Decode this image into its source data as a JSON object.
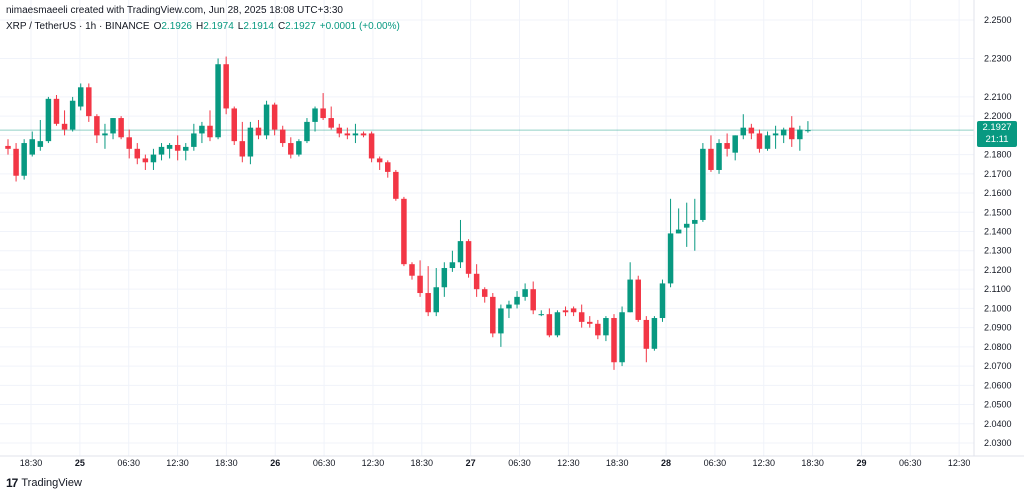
{
  "header": {
    "text": "nimaesmaeeli created with TradingView.com, Jun 28, 2025 18:08 UTC+3:30"
  },
  "legend": {
    "symbol": "XRP / TetherUS · 1h · BINANCE",
    "o_label": "O",
    "o_value": "2.1926",
    "h_label": "H",
    "h_value": "2.1974",
    "l_label": "L",
    "l_value": "2.1914",
    "c_label": "C",
    "c_value": "2.1927",
    "change": "+0.0001 (+0.00%)"
  },
  "price_tag": {
    "price": "2.1927",
    "countdown": "21:11",
    "color": "#089981"
  },
  "footer": {
    "brand": "TradingView",
    "logo_glyph": "17"
  },
  "colors": {
    "up": "#089981",
    "down": "#f23645",
    "grid": "#f0f3fa",
    "last_price_line": "#089981"
  },
  "chart_data": {
    "type": "candlestick",
    "symbol": "XRP / TetherUS",
    "interval": "1h",
    "exchange": "BINANCE",
    "ylim": [
      2.025,
      2.255
    ],
    "y_ticks": [
      "2.2500",
      "2.2300",
      "2.2100",
      "2.2000",
      "2.1900",
      "2.1800",
      "2.1700",
      "2.1600",
      "2.1500",
      "2.1400",
      "2.1300",
      "2.1200",
      "2.1100",
      "2.1000",
      "2.0900",
      "2.0800",
      "2.0700",
      "2.0600",
      "2.0500",
      "2.0400",
      "2.0300"
    ],
    "x_ticks": [
      {
        "label": "18:30",
        "day": false
      },
      {
        "label": "25",
        "day": true
      },
      {
        "label": "06:30",
        "day": false
      },
      {
        "label": "12:30",
        "day": false
      },
      {
        "label": "18:30",
        "day": false
      },
      {
        "label": "26",
        "day": true
      },
      {
        "label": "06:30",
        "day": false
      },
      {
        "label": "12:30",
        "day": false
      },
      {
        "label": "18:30",
        "day": false
      },
      {
        "label": "27",
        "day": true
      },
      {
        "label": "06:30",
        "day": false
      },
      {
        "label": "12:30",
        "day": false
      },
      {
        "label": "18:30",
        "day": false
      },
      {
        "label": "28",
        "day": true
      },
      {
        "label": "06:30",
        "day": false
      },
      {
        "label": "12:30",
        "day": false
      },
      {
        "label": "18:30",
        "day": false
      },
      {
        "label": "29",
        "day": true
      },
      {
        "label": "06:30",
        "day": false
      },
      {
        "label": "12:30",
        "day": false
      }
    ],
    "last_price": 2.1927,
    "candles": [
      [
        2.1845,
        2.188,
        2.18,
        2.183
      ],
      [
        2.183,
        2.186,
        2.166,
        2.169
      ],
      [
        2.169,
        2.188,
        2.167,
        2.186
      ],
      [
        2.18,
        2.192,
        2.179,
        2.188
      ],
      [
        2.184,
        2.198,
        2.182,
        2.187
      ],
      [
        2.187,
        2.21,
        2.186,
        2.209
      ],
      [
        2.209,
        2.211,
        2.195,
        2.196
      ],
      [
        2.196,
        2.203,
        2.19,
        2.193
      ],
      [
        2.193,
        2.21,
        2.192,
        2.208
      ],
      [
        2.205,
        2.217,
        2.203,
        2.215
      ],
      [
        2.215,
        2.217,
        2.197,
        2.2
      ],
      [
        2.2,
        2.201,
        2.186,
        2.19
      ],
      [
        2.19,
        2.196,
        2.183,
        2.191
      ],
      [
        2.191,
        2.199,
        2.188,
        2.199
      ],
      [
        2.199,
        2.2,
        2.188,
        2.189
      ],
      [
        2.189,
        2.193,
        2.178,
        2.183
      ],
      [
        2.183,
        2.186,
        2.175,
        2.178
      ],
      [
        2.178,
        2.18,
        2.172,
        2.176
      ],
      [
        2.176,
        2.183,
        2.172,
        2.18
      ],
      [
        2.18,
        2.186,
        2.177,
        2.184
      ],
      [
        2.183,
        2.186,
        2.178,
        2.185
      ],
      [
        2.185,
        2.19,
        2.177,
        2.182
      ],
      [
        2.182,
        2.186,
        2.177,
        2.184
      ],
      [
        2.184,
        2.196,
        2.182,
        2.191
      ],
      [
        2.191,
        2.197,
        2.186,
        2.195
      ],
      [
        2.195,
        2.203,
        2.187,
        2.189
      ],
      [
        2.189,
        2.23,
        2.188,
        2.227
      ],
      [
        2.227,
        2.231,
        2.201,
        2.204
      ],
      [
        2.204,
        2.205,
        2.185,
        2.187
      ],
      [
        2.187,
        2.197,
        2.176,
        2.179
      ],
      [
        2.179,
        2.197,
        2.175,
        2.194
      ],
      [
        2.194,
        2.198,
        2.188,
        2.19
      ],
      [
        2.19,
        2.208,
        2.188,
        2.206
      ],
      [
        2.206,
        2.207,
        2.19,
        2.193
      ],
      [
        2.193,
        2.195,
        2.184,
        2.186
      ],
      [
        2.186,
        2.189,
        2.178,
        2.18
      ],
      [
        2.18,
        2.188,
        2.179,
        2.187
      ],
      [
        2.187,
        2.199,
        2.186,
        2.197
      ],
      [
        2.197,
        2.205,
        2.192,
        2.204
      ],
      [
        2.204,
        2.212,
        2.198,
        2.199
      ],
      [
        2.199,
        2.205,
        2.193,
        2.194
      ],
      [
        2.194,
        2.196,
        2.189,
        2.191
      ],
      [
        2.191,
        2.194,
        2.188,
        2.19
      ],
      [
        2.19,
        2.196,
        2.186,
        2.191
      ],
      [
        2.191,
        2.192,
        2.189,
        2.19
      ],
      [
        2.191,
        2.192,
        2.176,
        2.178
      ],
      [
        2.178,
        2.179,
        2.172,
        2.176
      ],
      [
        2.176,
        2.177,
        2.168,
        2.171
      ],
      [
        2.171,
        2.172,
        2.156,
        2.157
      ],
      [
        2.157,
        2.158,
        2.122,
        2.123
      ],
      [
        2.123,
        2.124,
        2.115,
        2.117
      ],
      [
        2.117,
        2.125,
        2.106,
        2.108
      ],
      [
        2.108,
        2.122,
        2.096,
        2.098
      ],
      [
        2.098,
        2.121,
        2.096,
        2.111
      ],
      [
        2.111,
        2.124,
        2.106,
        2.121
      ],
      [
        2.121,
        2.13,
        2.119,
        2.124
      ],
      [
        2.124,
        2.146,
        2.121,
        2.135
      ],
      [
        2.135,
        2.136,
        2.116,
        2.118
      ],
      [
        2.118,
        2.123,
        2.106,
        2.11
      ],
      [
        2.11,
        2.111,
        2.103,
        2.106
      ],
      [
        2.106,
        2.108,
        2.085,
        2.087
      ],
      [
        2.087,
        2.102,
        2.08,
        2.1
      ],
      [
        2.1,
        2.104,
        2.095,
        2.102
      ],
      [
        2.102,
        2.109,
        2.1,
        2.106
      ],
      [
        2.106,
        2.113,
        2.104,
        2.11
      ],
      [
        2.11,
        2.114,
        2.097,
        2.099
      ],
      [
        2.097,
        2.099,
        2.096,
        2.097
      ],
      [
        2.097,
        2.1,
        2.085,
        2.086
      ],
      [
        2.086,
        2.099,
        2.085,
        2.098
      ],
      [
        2.099,
        2.101,
        2.096,
        2.098
      ],
      [
        2.1,
        2.101,
        2.096,
        2.098
      ],
      [
        2.098,
        2.102,
        2.09,
        2.093
      ],
      [
        2.093,
        2.096,
        2.09,
        2.092
      ],
      [
        2.092,
        2.094,
        2.084,
        2.086
      ],
      [
        2.086,
        2.096,
        2.083,
        2.095
      ],
      [
        2.095,
        2.097,
        2.068,
        2.072
      ],
      [
        2.072,
        2.101,
        2.07,
        2.098
      ],
      [
        2.098,
        2.124,
        2.098,
        2.115
      ],
      [
        2.115,
        2.117,
        2.093,
        2.094
      ],
      [
        2.094,
        2.096,
        2.072,
        2.079
      ],
      [
        2.079,
        2.096,
        2.078,
        2.095
      ],
      [
        2.095,
        2.115,
        2.093,
        2.113
      ],
      [
        2.113,
        2.157,
        2.111,
        2.139
      ],
      [
        2.139,
        2.152,
        2.139,
        2.141
      ],
      [
        2.142,
        2.155,
        2.132,
        2.144
      ],
      [
        2.144,
        2.157,
        2.13,
        2.146
      ],
      [
        2.146,
        2.186,
        2.145,
        2.183
      ],
      [
        2.183,
        2.19,
        2.171,
        2.172
      ],
      [
        2.172,
        2.188,
        2.17,
        2.186
      ],
      [
        2.186,
        2.191,
        2.179,
        2.183
      ],
      [
        2.181,
        2.19,
        2.177,
        2.19
      ],
      [
        2.19,
        2.201,
        2.188,
        2.194
      ],
      [
        2.194,
        2.196,
        2.188,
        2.191
      ],
      [
        2.191,
        2.193,
        2.181,
        2.183
      ],
      [
        2.183,
        2.192,
        2.182,
        2.19
      ],
      [
        2.19,
        2.195,
        2.183,
        2.191
      ],
      [
        2.19,
        2.194,
        2.186,
        2.193
      ],
      [
        2.194,
        2.2,
        2.184,
        2.188
      ],
      [
        2.188,
        2.195,
        2.182,
        2.193
      ],
      [
        2.1926,
        2.1974,
        2.1914,
        2.1927
      ]
    ]
  }
}
